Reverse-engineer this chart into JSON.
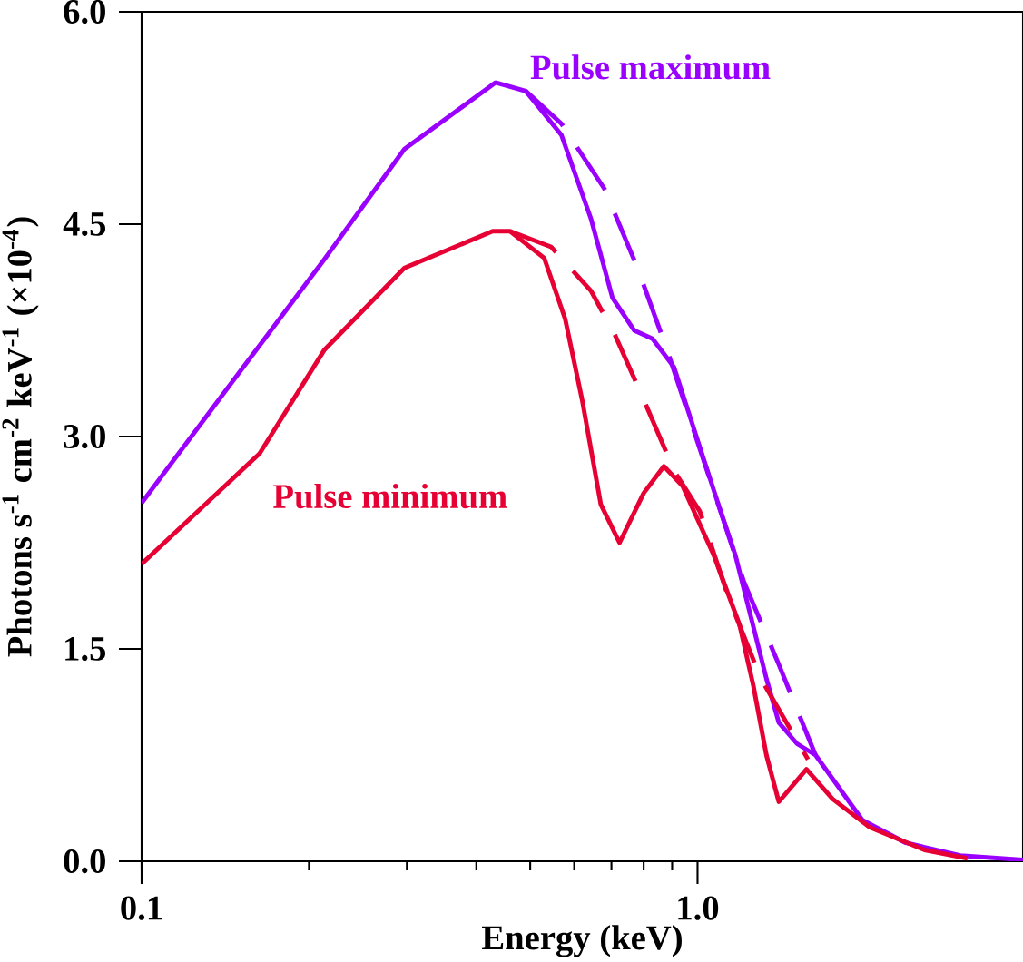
{
  "chart_data": {
    "type": "line",
    "xlabel": "Energy (keV)",
    "ylabel": "Photons s$^{-1}$ cm$^{-2}$ keV$^{-1}$ (×10$^{-4}$)",
    "log": "x",
    "legend": false,
    "grid": false,
    "marker": "none",
    "xlim": [
      0.1,
      3.85
    ],
    "ylim": [
      0,
      6
    ],
    "xticks": [
      0.1,
      {
        "value": 1,
        "label": "1.0"
      }
    ],
    "yticks": [
      {
        "value": 0,
        "label": "0.0"
      },
      1.5,
      {
        "value": 3,
        "label": "3.0"
      },
      4.5,
      {
        "value": 6,
        "label": "6.0"
      }
    ],
    "series": [
      {
        "name": "Pulse maximum",
        "color": "#9900ff",
        "line_style": "solid",
        "x": [
          0.1,
          0.142,
          0.213,
          0.297,
          0.433,
          0.491,
          0.569,
          0.643,
          0.703,
          0.769,
          0.83,
          0.907,
          1.09,
          1.17,
          1.33,
          1.4,
          1.51,
          1.63,
          1.98,
          2.37,
          2.97,
          3.85
        ],
        "values": [
          2.53,
          3.33,
          4.25,
          5.03,
          5.5,
          5.44,
          5.13,
          4.54,
          3.98,
          3.75,
          3.69,
          3.49,
          2.52,
          2.16,
          1.29,
          0.98,
          0.83,
          0.75,
          0.29,
          0.13,
          0.04,
          0.01
        ]
      },
      {
        "color": "#9900ff",
        "line_style": "dashed",
        "x": [
          0.491,
          0.569,
          0.68,
          0.78,
          0.88,
          1.21,
          1.4,
          1.58,
          1.63
        ],
        "values": [
          5.44,
          5.21,
          4.75,
          4.19,
          3.62,
          1.98,
          1.39,
          0.88,
          0.75
        ]
      },
      {
        "name": "Pulse minimum",
        "color": "#e60033",
        "line_style": "solid",
        "x": [
          0.1,
          0.163,
          0.213,
          0.297,
          0.428,
          0.46,
          0.53,
          0.578,
          0.62,
          0.67,
          0.724,
          0.8,
          0.87,
          0.94,
          1.07,
          1.19,
          1.26,
          1.33,
          1.4,
          1.57,
          1.75,
          2.04,
          2.56,
          3.06
        ],
        "values": [
          2.1,
          2.88,
          3.61,
          4.19,
          4.45,
          4.45,
          4.26,
          3.83,
          3.26,
          2.52,
          2.25,
          2.6,
          2.79,
          2.65,
          2.16,
          1.67,
          1.24,
          0.75,
          0.42,
          0.65,
          0.44,
          0.24,
          0.08,
          0.02
        ]
      },
      {
        "color": "#e60033",
        "line_style": "dashed",
        "x": [
          0.46,
          0.545,
          0.643,
          0.71,
          0.8,
          0.91,
          1.01,
          1.14,
          1.3,
          1.47,
          1.58
        ],
        "values": [
          4.45,
          4.34,
          4.03,
          3.72,
          3.26,
          2.75,
          2.47,
          1.85,
          1.29,
          0.93,
          0.72
        ]
      }
    ]
  }
}
